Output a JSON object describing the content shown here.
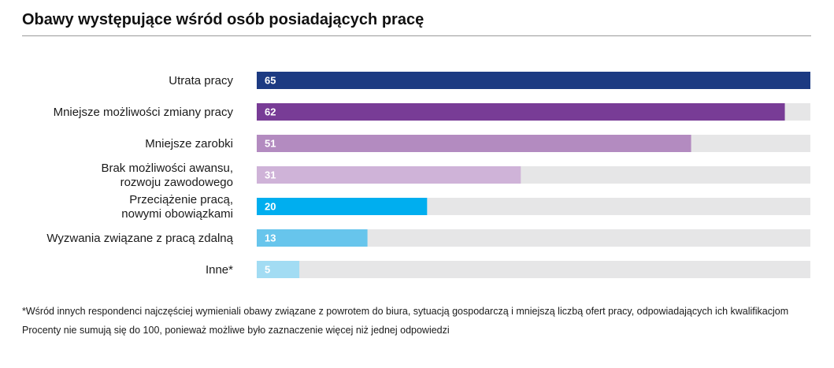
{
  "title": "Obawy występujące wśród osób posiadających pracę",
  "chart_data": {
    "type": "bar",
    "orientation": "horizontal",
    "categories": [
      [
        "Utrata pracy"
      ],
      [
        "Mniejsze możliwości zmiany pracy"
      ],
      [
        "Mniejsze zarobki"
      ],
      [
        "Brak możliwości awansu,",
        "rozwoju zawodowego"
      ],
      [
        "Przeciążenie pracą,",
        "nowymi obowiązkami"
      ],
      [
        "Wyzwania związane z pracą zdalną"
      ],
      [
        "Inne*"
      ]
    ],
    "values": [
      65,
      62,
      51,
      31,
      20,
      13,
      5
    ],
    "value_labels": [
      "65",
      "62",
      "51",
      "31",
      "20",
      "13",
      "5"
    ],
    "xlim": [
      0,
      65
    ],
    "colors": [
      "#1c3a82",
      "#783c96",
      "#b38bc0",
      "#cfb3d8",
      "#00aeef",
      "#67c5ec",
      "#a2dcf3"
    ],
    "track_color": "#e6e6e7",
    "grid": false
  },
  "notes": {
    "footnote": "*Wśród innych respondenci najczęściej wymieniali obawy związane z powrotem do biura, sytuacją gospodarczą i mniejszą liczbą ofert pracy, odpowiadających ich kwalifikacjom",
    "source": "Procenty nie sumują się do 100, ponieważ możliwe było zaznaczenie więcej niż jednej odpowiedzi"
  }
}
